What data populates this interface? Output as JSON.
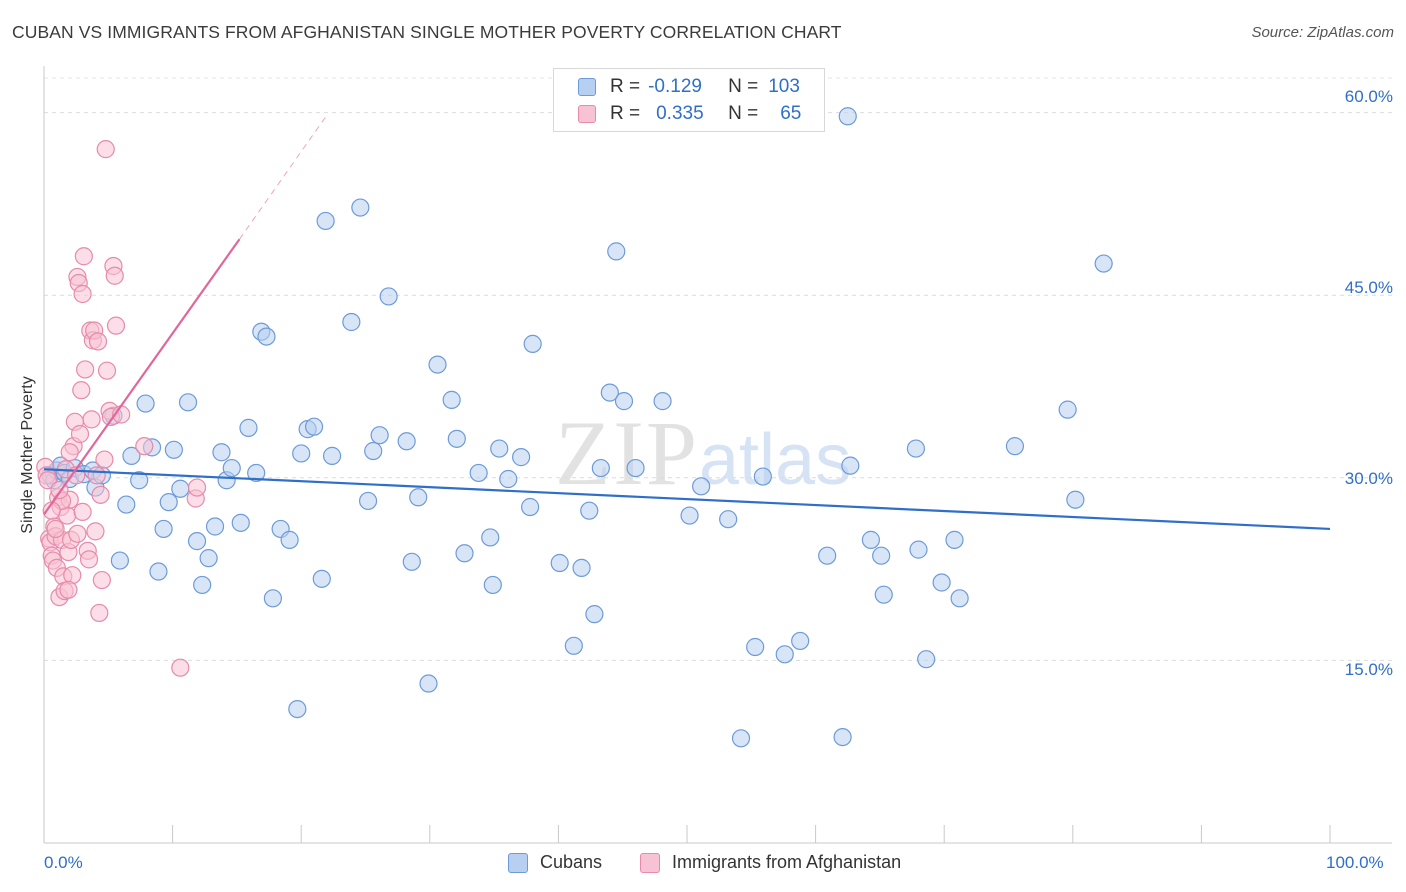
{
  "header": {
    "title": "CUBAN VS IMMIGRANTS FROM AFGHANISTAN SINGLE MOTHER POVERTY CORRELATION CHART",
    "source": "Source: ZipAtlas.com"
  },
  "watermark": {
    "zip": "ZIP",
    "atlas": "atlas"
  },
  "legend": {
    "rows": [
      {
        "r_label": "R =",
        "r_value": "-0.129",
        "n_label": "N =",
        "n_value": "103"
      },
      {
        "r_label": "R =",
        "r_value": "0.335",
        "n_label": "N =",
        "n_value": "65"
      }
    ]
  },
  "bottom_legend": {
    "series1": "Cubans",
    "series2": "Immigrants from Afghanistan"
  },
  "colors": {
    "blue": "#6d9bd9",
    "blue_fill": "#b7cff0",
    "pink": "#e88aaa",
    "pink_fill": "#f7c3d4",
    "blue_line": "#2f6fc9",
    "pink_line": "#e0679a"
  },
  "chart_data": {
    "type": "scatter",
    "title": "CUBAN VS IMMIGRANTS FROM AFGHANISTAN SINGLE MOTHER POVERTY CORRELATION CHART",
    "xlabel": "",
    "ylabel": "Single Mother Poverty",
    "xlim": [
      0,
      100
    ],
    "ylim": [
      0,
      63.5
    ],
    "x_tick_labels": [
      "0.0%",
      "100.0%"
    ],
    "y_ticks": [
      15,
      30,
      45,
      60
    ],
    "y_tick_labels": [
      "15.0%",
      "30.0%",
      "45.0%",
      "60.0%"
    ],
    "grid": true,
    "series": [
      {
        "name": "Cubans",
        "r": -0.129,
        "n": 103,
        "trend": {
          "x0": 0,
          "y0": 30.7,
          "x1": 100,
          "y1": 25.8
        },
        "points": [
          [
            0.5,
            30.2
          ],
          [
            0.8,
            29.8
          ],
          [
            1.0,
            30.6
          ],
          [
            1.3,
            31.0
          ],
          [
            1.6,
            30.4
          ],
          [
            2.0,
            29.9
          ],
          [
            2.4,
            30.8
          ],
          [
            3.1,
            30.3
          ],
          [
            3.8,
            30.6
          ],
          [
            4.0,
            29.2
          ],
          [
            4.5,
            30.2
          ],
          [
            5.4,
            35.1
          ],
          [
            5.9,
            23.2
          ],
          [
            6.4,
            27.8
          ],
          [
            6.8,
            31.8
          ],
          [
            7.4,
            29.8
          ],
          [
            7.9,
            36.1
          ],
          [
            8.4,
            32.5
          ],
          [
            8.9,
            22.3
          ],
          [
            9.3,
            25.8
          ],
          [
            9.7,
            28.0
          ],
          [
            10.1,
            32.3
          ],
          [
            10.6,
            29.1
          ],
          [
            11.2,
            36.2
          ],
          [
            11.9,
            24.8
          ],
          [
            12.3,
            21.2
          ],
          [
            12.8,
            23.4
          ],
          [
            13.3,
            26.0
          ],
          [
            13.8,
            32.1
          ],
          [
            14.2,
            29.8
          ],
          [
            14.6,
            30.8
          ],
          [
            15.3,
            26.3
          ],
          [
            15.9,
            34.1
          ],
          [
            16.5,
            30.4
          ],
          [
            16.9,
            42.0
          ],
          [
            17.3,
            41.6
          ],
          [
            17.8,
            20.1
          ],
          [
            18.4,
            25.8
          ],
          [
            19.1,
            24.9
          ],
          [
            19.7,
            11.0
          ],
          [
            20.0,
            32.0
          ],
          [
            20.5,
            34.0
          ],
          [
            21.0,
            34.2
          ],
          [
            21.6,
            21.7
          ],
          [
            21.9,
            51.1
          ],
          [
            22.4,
            31.8
          ],
          [
            23.9,
            42.8
          ],
          [
            24.6,
            52.2
          ],
          [
            25.2,
            28.1
          ],
          [
            25.6,
            32.2
          ],
          [
            26.1,
            33.5
          ],
          [
            26.8,
            44.9
          ],
          [
            28.2,
            33.0
          ],
          [
            28.6,
            23.1
          ],
          [
            29.1,
            28.4
          ],
          [
            29.9,
            13.1
          ],
          [
            30.6,
            39.3
          ],
          [
            31.7,
            36.4
          ],
          [
            32.1,
            33.2
          ],
          [
            32.7,
            23.8
          ],
          [
            33.8,
            30.4
          ],
          [
            34.7,
            25.1
          ],
          [
            34.9,
            21.2
          ],
          [
            35.4,
            32.4
          ],
          [
            36.1,
            29.9
          ],
          [
            37.1,
            31.7
          ],
          [
            37.8,
            27.6
          ],
          [
            38.0,
            41.0
          ],
          [
            40.1,
            23.0
          ],
          [
            41.2,
            16.2
          ],
          [
            41.8,
            22.6
          ],
          [
            42.4,
            27.3
          ],
          [
            42.8,
            18.8
          ],
          [
            43.3,
            30.8
          ],
          [
            44.0,
            37.0
          ],
          [
            44.5,
            48.6
          ],
          [
            45.1,
            36.3
          ],
          [
            46.0,
            30.8
          ],
          [
            48.1,
            36.3
          ],
          [
            50.2,
            26.9
          ],
          [
            51.1,
            29.3
          ],
          [
            53.2,
            26.6
          ],
          [
            54.2,
            8.6
          ],
          [
            55.3,
            16.1
          ],
          [
            55.9,
            30.1
          ],
          [
            57.6,
            15.5
          ],
          [
            58.8,
            16.6
          ],
          [
            60.9,
            23.6
          ],
          [
            62.1,
            8.7
          ],
          [
            62.5,
            59.7
          ],
          [
            62.7,
            31.0
          ],
          [
            64.3,
            24.9
          ],
          [
            65.1,
            23.6
          ],
          [
            65.3,
            20.4
          ],
          [
            67.8,
            32.4
          ],
          [
            68.0,
            24.1
          ],
          [
            68.6,
            15.1
          ],
          [
            69.8,
            21.4
          ],
          [
            70.8,
            24.9
          ],
          [
            71.2,
            20.1
          ],
          [
            75.5,
            32.6
          ],
          [
            79.6,
            35.6
          ],
          [
            80.2,
            28.2
          ],
          [
            82.4,
            47.6
          ]
        ]
      },
      {
        "name": "Immigrants from Afghanistan",
        "r": 0.335,
        "n": 65,
        "trend": {
          "x0": 0,
          "y0": 27.0,
          "x1": 15.2,
          "y1": 49.6
        },
        "trend_dashed_end": {
          "x": 22.0,
          "y": 59.8
        },
        "points": [
          [
            0.1,
            30.9
          ],
          [
            0.2,
            30.2
          ],
          [
            0.3,
            29.8
          ],
          [
            0.4,
            25.0
          ],
          [
            0.5,
            24.7
          ],
          [
            0.6,
            23.6
          ],
          [
            0.7,
            23.2
          ],
          [
            0.8,
            26.0
          ],
          [
            0.9,
            25.2
          ],
          [
            1.0,
            22.6
          ],
          [
            1.1,
            28.4
          ],
          [
            1.2,
            20.2
          ],
          [
            1.3,
            27.6
          ],
          [
            1.4,
            24.9
          ],
          [
            1.5,
            21.9
          ],
          [
            1.6,
            20.7
          ],
          [
            1.7,
            30.7
          ],
          [
            1.8,
            26.9
          ],
          [
            1.9,
            23.9
          ],
          [
            2.0,
            28.2
          ],
          [
            2.1,
            24.9
          ],
          [
            2.2,
            22.0
          ],
          [
            2.3,
            32.6
          ],
          [
            2.4,
            34.6
          ],
          [
            2.5,
            30.2
          ],
          [
            2.6,
            46.5
          ],
          [
            2.7,
            46.0
          ],
          [
            2.8,
            33.6
          ],
          [
            2.9,
            37.2
          ],
          [
            3.0,
            45.1
          ],
          [
            3.1,
            48.2
          ],
          [
            3.2,
            38.9
          ],
          [
            3.4,
            24.0
          ],
          [
            3.6,
            42.1
          ],
          [
            3.7,
            34.8
          ],
          [
            3.8,
            41.3
          ],
          [
            3.9,
            42.1
          ],
          [
            4.0,
            25.6
          ],
          [
            4.1,
            30.2
          ],
          [
            4.2,
            41.2
          ],
          [
            4.3,
            18.9
          ],
          [
            4.4,
            28.6
          ],
          [
            4.5,
            21.6
          ],
          [
            4.7,
            31.5
          ],
          [
            4.9,
            38.8
          ],
          [
            5.1,
            35.5
          ],
          [
            5.2,
            35.0
          ],
          [
            5.4,
            47.4
          ],
          [
            5.5,
            46.6
          ],
          [
            5.6,
            42.5
          ],
          [
            6.0,
            35.2
          ],
          [
            7.8,
            32.6
          ],
          [
            10.6,
            14.4
          ],
          [
            11.8,
            28.3
          ],
          [
            11.9,
            29.2
          ],
          [
            4.8,
            57.0
          ],
          [
            0.9,
            25.8
          ],
          [
            1.4,
            28.1
          ],
          [
            2.0,
            32.1
          ],
          [
            3.0,
            27.2
          ],
          [
            3.5,
            23.3
          ],
          [
            0.6,
            27.3
          ],
          [
            1.9,
            20.8
          ],
          [
            2.6,
            25.4
          ],
          [
            1.2,
            29.0
          ]
        ]
      }
    ]
  }
}
